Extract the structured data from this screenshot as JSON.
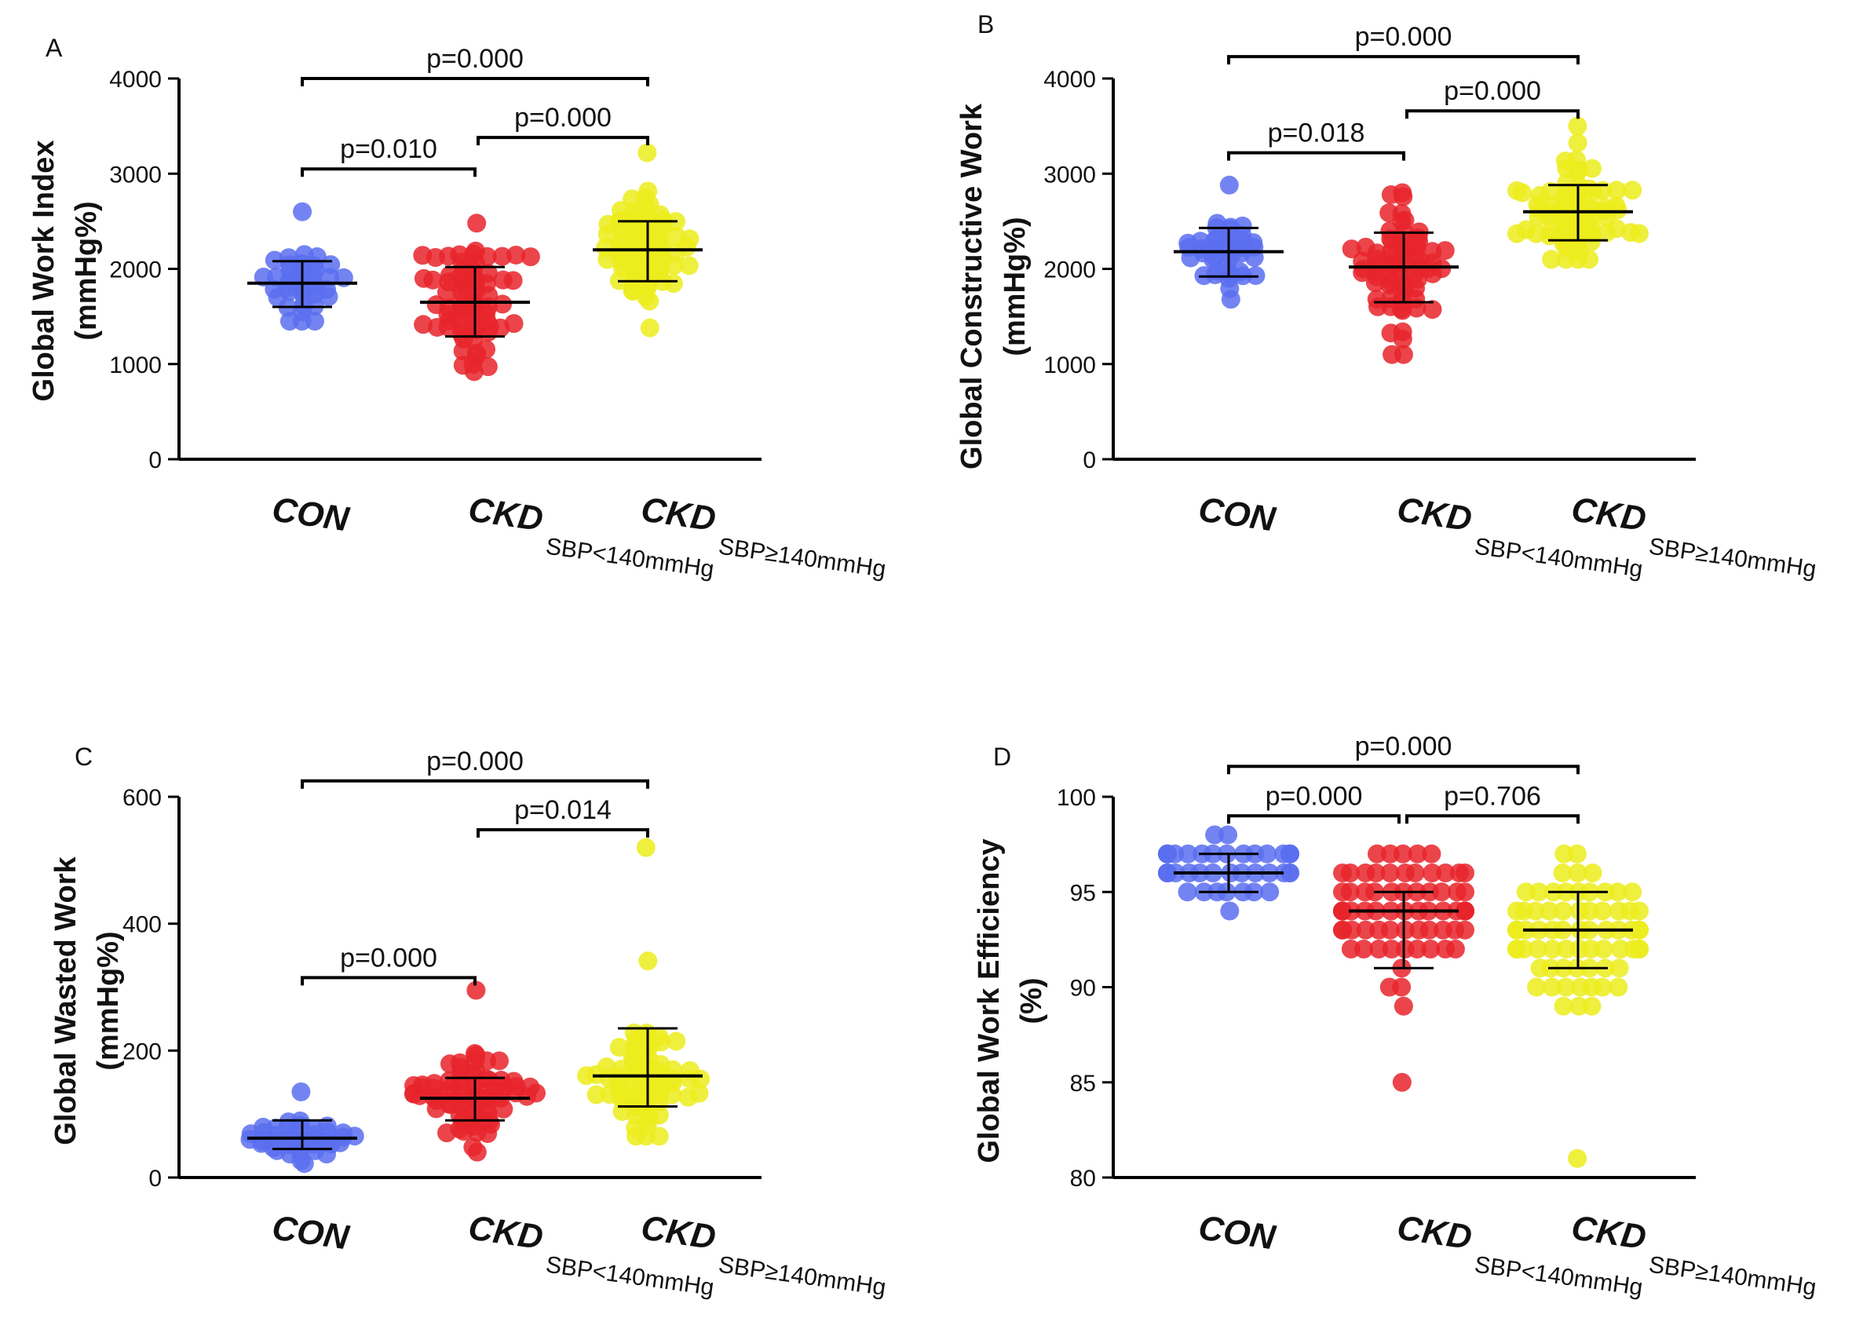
{
  "colors": {
    "CON": "#5b6ff0",
    "CKD_low": "#e8252b",
    "CKD_high": "#ecec1c"
  },
  "chart_data": [
    {
      "panel": "A",
      "type": "scatter",
      "ylabel_line1": "Global Work Index",
      "ylabel_line2": "(mmHg%)",
      "ylim": [
        0,
        4000
      ],
      "yticks": [
        0,
        1000,
        2000,
        3000,
        4000
      ],
      "categories": [
        {
          "main": "CON",
          "sub": ""
        },
        {
          "main": "CKD",
          "sub": "SBP<140mmHg"
        },
        {
          "main": "CKD",
          "sub": "SBP≥140mmHg"
        }
      ],
      "groups": [
        {
          "key": "CON",
          "mean": 1850,
          "sd_low": 1600,
          "sd_high": 2080,
          "min": 1450,
          "max": 2600,
          "n": 40
        },
        {
          "key": "CKD_low",
          "mean": 1650,
          "sd_low": 1290,
          "sd_high": 2020,
          "min": 920,
          "max": 2480,
          "n": 70
        },
        {
          "key": "CKD_high",
          "mean": 2200,
          "sd_low": 1870,
          "sd_high": 2500,
          "min": 1380,
          "max": 3220,
          "n": 70
        }
      ],
      "comparisons": [
        {
          "from": 0,
          "to": 2,
          "label": "p=0.000",
          "level": 4000
        },
        {
          "from": 0,
          "to": 1,
          "label": "p=0.010",
          "level": 3050
        },
        {
          "from": 1,
          "to": 2,
          "label": "p=0.000",
          "level": 3380
        }
      ]
    },
    {
      "panel": "B",
      "type": "scatter",
      "ylabel_line1": "Global Constructive Work",
      "ylabel_line2": "(mmHg%)",
      "ylim": [
        0,
        4000
      ],
      "yticks": [
        0,
        1000,
        2000,
        3000,
        4000
      ],
      "categories": [
        {
          "main": "CON",
          "sub": ""
        },
        {
          "main": "CKD",
          "sub": "SBP<140mmHg"
        },
        {
          "main": "CKD",
          "sub": "SBP≥140mmHg"
        }
      ],
      "groups": [
        {
          "key": "CON",
          "mean": 2180,
          "sd_low": 1920,
          "sd_high": 2430,
          "min": 1680,
          "max": 2880,
          "n": 40
        },
        {
          "key": "CKD_low",
          "mean": 2020,
          "sd_low": 1650,
          "sd_high": 2380,
          "min": 1100,
          "max": 2800,
          "n": 70
        },
        {
          "key": "CKD_high",
          "mean": 2600,
          "sd_low": 2300,
          "sd_high": 2880,
          "min": 2100,
          "max": 3500,
          "n": 70
        }
      ],
      "comparisons": [
        {
          "from": 0,
          "to": 2,
          "label": "p=0.000",
          "level": 4230
        },
        {
          "from": 0,
          "to": 1,
          "label": "p=0.018",
          "level": 3220
        },
        {
          "from": 1,
          "to": 2,
          "label": "p=0.000",
          "level": 3660
        }
      ]
    },
    {
      "panel": "C",
      "type": "scatter",
      "ylabel_line1": "Global Wasted Work",
      "ylabel_line2": "(mmHg%)",
      "ylim": [
        0,
        600
      ],
      "yticks": [
        0,
        200,
        400,
        600
      ],
      "categories": [
        {
          "main": "CON",
          "sub": ""
        },
        {
          "main": "CKD",
          "sub": "SBP<140mmHg"
        },
        {
          "main": "CKD",
          "sub": "SBP≥140mmHg"
        }
      ],
      "groups": [
        {
          "key": "CON",
          "mean": 62,
          "sd_low": 45,
          "sd_high": 90,
          "min": 22,
          "max": 135,
          "n": 40
        },
        {
          "key": "CKD_low",
          "mean": 125,
          "sd_low": 90,
          "sd_high": 157,
          "min": 40,
          "max": 295,
          "n": 70
        },
        {
          "key": "CKD_high",
          "mean": 160,
          "sd_low": 112,
          "sd_high": 235,
          "min": 65,
          "max": 520,
          "n": 70
        }
      ],
      "comparisons": [
        {
          "from": 0,
          "to": 2,
          "label": "p=0.000",
          "level": 625
        },
        {
          "from": 1,
          "to": 2,
          "label": "p=0.014",
          "level": 548
        },
        {
          "from": 0,
          "to": 1,
          "label": "p=0.000",
          "level": 315
        }
      ]
    },
    {
      "panel": "D",
      "type": "scatter",
      "ylabel_line1": "Global Work Efficiency",
      "ylabel_line2": "(%)",
      "ylim": [
        80,
        100
      ],
      "yticks": [
        80,
        85,
        90,
        95,
        100
      ],
      "categories": [
        {
          "main": "CON",
          "sub": ""
        },
        {
          "main": "CKD",
          "sub": "SBP<140mmHg"
        },
        {
          "main": "CKD",
          "sub": "SBP≥140mmHg"
        }
      ],
      "groups": [
        {
          "key": "CON",
          "mean": 96,
          "sd_low": 95,
          "sd_high": 97,
          "min": 94,
          "max": 98,
          "n": 40
        },
        {
          "key": "CKD_low",
          "mean": 94,
          "sd_low": 91,
          "sd_high": 95,
          "min": 85,
          "max": 97,
          "n": 70
        },
        {
          "key": "CKD_high",
          "mean": 93,
          "sd_low": 91,
          "sd_high": 95,
          "min": 81,
          "max": 97,
          "n": 70
        }
      ],
      "comparisons": [
        {
          "from": 0,
          "to": 2,
          "label": "p=0.000",
          "level": 101.6
        },
        {
          "from": 0,
          "to": 1,
          "label": "p=0.000",
          "level": 99.0
        },
        {
          "from": 1,
          "to": 2,
          "label": "p=0.706",
          "level": 99.0
        }
      ]
    }
  ]
}
